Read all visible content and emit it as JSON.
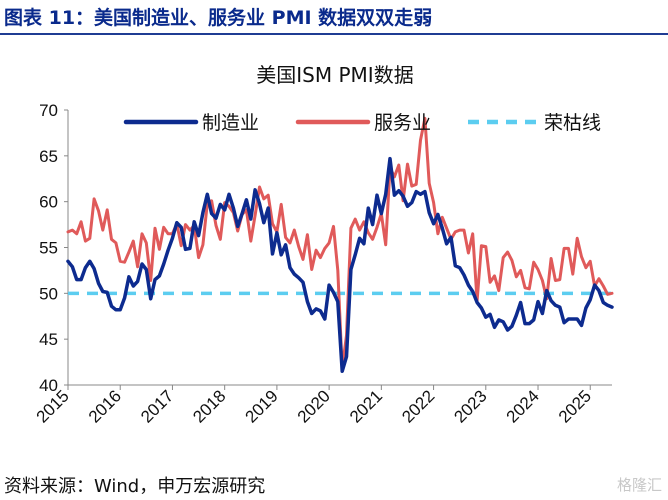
{
  "figure_title": "图表 11：美国制造业、服务业 PMI 数据双双走弱",
  "source": "资料来源：Wind，申万宏源研究",
  "watermark": "格隆汇",
  "colors": {
    "manufacturing": "#0d2b8f",
    "services": "#e05a5a",
    "threshold": "#5ccdf0",
    "title_rule": "#1f3c93"
  },
  "chart_data": {
    "type": "line",
    "title": "美国ISM PMI数据",
    "xlabel": "",
    "ylabel": "",
    "ylim": [
      40,
      70
    ],
    "yticks": [
      40,
      45,
      50,
      55,
      60,
      65,
      70
    ],
    "xticks": [
      "2015",
      "2016",
      "2017",
      "2018",
      "2019",
      "2020",
      "2021",
      "2022",
      "2023",
      "2024",
      "2025"
    ],
    "grid": false,
    "legend_position": "top-right",
    "x_start": "2015-01",
    "x_end": "2025-05",
    "series": [
      {
        "name": "制造业",
        "values": [
          53.5,
          52.9,
          51.5,
          51.5,
          52.8,
          53.5,
          52.7,
          51.1,
          50.2,
          50.1,
          48.6,
          48.2,
          48.2,
          49.5,
          51.8,
          50.8,
          51.3,
          53.2,
          52.6,
          49.4,
          51.5,
          51.9,
          53.2,
          54.7,
          56.0,
          57.7,
          57.2,
          54.8,
          54.9,
          57.8,
          56.3,
          58.8,
          60.8,
          58.7,
          58.2,
          59.7,
          59.1,
          60.8,
          59.3,
          57.3,
          58.7,
          60.2,
          58.1,
          61.3,
          59.8,
          57.7,
          59.3,
          54.3,
          56.6,
          54.2,
          55.3,
          52.8,
          52.1,
          51.7,
          51.2,
          49.1,
          47.8,
          48.3,
          48.1,
          47.2,
          50.9,
          50.1,
          49.1,
          41.5,
          43.1,
          52.6,
          54.2,
          56.0,
          55.4,
          59.3,
          57.5,
          60.7,
          58.7,
          60.8,
          64.7,
          60.7,
          61.2,
          60.6,
          59.5,
          59.9,
          61.1,
          60.8,
          61.1,
          58.8,
          57.6,
          58.6,
          57.1,
          55.4,
          56.1,
          53.0,
          52.8,
          52.0,
          50.9,
          50.2,
          49.0,
          48.4,
          47.4,
          47.7,
          46.3,
          47.1,
          46.9,
          46.0,
          46.4,
          47.6,
          49.0,
          46.7,
          46.7,
          47.1,
          49.1,
          47.8,
          50.3,
          49.2,
          48.7,
          48.5,
          46.8,
          47.2,
          47.2,
          47.2,
          46.5,
          48.4,
          49.3,
          50.9,
          50.3,
          49.0,
          48.7,
          48.5
        ]
      },
      {
        "name": "服务业",
        "values": [
          56.7,
          56.9,
          56.5,
          57.8,
          55.7,
          56.0,
          60.3,
          59.0,
          56.9,
          59.1,
          55.9,
          55.5,
          53.5,
          53.4,
          54.5,
          55.7,
          52.9,
          56.5,
          55.5,
          51.4,
          57.1,
          54.8,
          57.2,
          56.5,
          56.5,
          57.6,
          55.2,
          57.5,
          56.9,
          57.4,
          53.9,
          55.3,
          59.8,
          60.1,
          57.4,
          55.9,
          59.9,
          59.5,
          58.8,
          56.8,
          58.6,
          59.1,
          55.7,
          58.5,
          61.6,
          60.3,
          60.7,
          57.6,
          56.7,
          59.7,
          56.1,
          55.5,
          56.9,
          55.1,
          53.7,
          56.4,
          52.6,
          54.7,
          53.9,
          54.9,
          55.5,
          57.3,
          52.5,
          41.8,
          45.4,
          57.1,
          58.1,
          56.9,
          57.8,
          56.6,
          55.9,
          57.2,
          58.7,
          55.3,
          63.7,
          62.7,
          64.0,
          60.1,
          64.1,
          61.7,
          61.9,
          66.7,
          69.1,
          62.0,
          59.9,
          56.5,
          58.3,
          57.1,
          55.9,
          56.7,
          56.9,
          56.9,
          54.4,
          56.5,
          49.2,
          55.2,
          55.1,
          51.2,
          51.9,
          50.3,
          53.9,
          54.5,
          53.6,
          51.8,
          52.5,
          50.6,
          50.5,
          53.4,
          52.6,
          51.4,
          49.4,
          53.8,
          51.4,
          51.5,
          54.9,
          54.9,
          52.1,
          56.0,
          54.0,
          52.8,
          53.5,
          50.8,
          51.6,
          50.8,
          49.9,
          50.0
        ]
      },
      {
        "name": "荣枯线",
        "values": [
          50,
          50
        ]
      }
    ]
  }
}
